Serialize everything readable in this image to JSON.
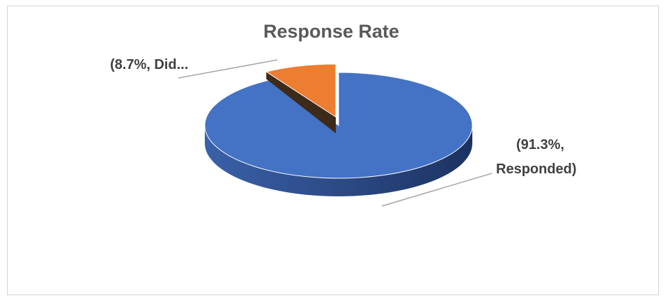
{
  "chart_data": {
    "type": "pie",
    "style": "3d-exploded",
    "title": "Response Rate",
    "slices": [
      {
        "name": "Responded",
        "value": 91.3,
        "color": "#4472c4"
      },
      {
        "name": "Did...",
        "value": 8.7,
        "color": "#ed7d31"
      }
    ],
    "labels": {
      "did": "(8.7%, Did...",
      "responded_line1": "(91.3%,",
      "responded_line2": "Responded)"
    }
  }
}
